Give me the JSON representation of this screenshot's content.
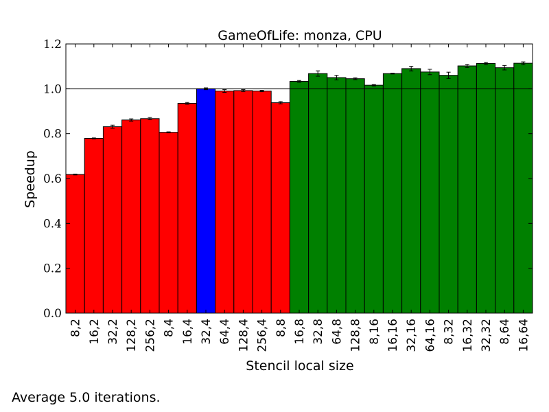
{
  "chart_data": {
    "type": "bar",
    "title": "GameOfLife: monza, CPU",
    "xlabel": "Stencil local size",
    "ylabel": "Speedup",
    "ylim": [
      0.0,
      1.2
    ],
    "yticks": [
      "0.0",
      "0.2",
      "0.4",
      "0.6",
      "0.8",
      "1.0",
      "1.2"
    ],
    "reference_line": 1.0,
    "grid": false,
    "categories": [
      "8,2",
      "16,2",
      "32,2",
      "128,2",
      "256,2",
      "8,4",
      "16,4",
      "32,4",
      "64,4",
      "128,4",
      "256,4",
      "8,8",
      "16,8",
      "32,8",
      "64,8",
      "128,8",
      "8,16",
      "16,16",
      "32,16",
      "64,16",
      "8,32",
      "16,32",
      "32,32",
      "8,64",
      "16,64"
    ],
    "values": [
      0.618,
      0.779,
      0.831,
      0.861,
      0.867,
      0.806,
      0.935,
      1.0,
      0.99,
      0.992,
      0.99,
      0.938,
      1.033,
      1.068,
      1.05,
      1.045,
      1.016,
      1.068,
      1.09,
      1.075,
      1.06,
      1.102,
      1.113,
      1.094,
      1.114
    ],
    "errors": [
      0.002,
      0.002,
      0.007,
      0.005,
      0.005,
      0.002,
      0.004,
      0.004,
      0.006,
      0.004,
      0.003,
      0.005,
      0.004,
      0.012,
      0.01,
      0.004,
      0.003,
      0.002,
      0.01,
      0.012,
      0.014,
      0.007,
      0.005,
      0.01,
      0.006
    ],
    "colors": [
      "#ff0000",
      "#ff0000",
      "#ff0000",
      "#ff0000",
      "#ff0000",
      "#ff0000",
      "#ff0000",
      "#0000ff",
      "#ff0000",
      "#ff0000",
      "#ff0000",
      "#ff0000",
      "#008000",
      "#008000",
      "#008000",
      "#008000",
      "#008000",
      "#008000",
      "#008000",
      "#008000",
      "#008000",
      "#008000",
      "#008000",
      "#008000",
      "#008000"
    ]
  },
  "footnote": "Average 5.0 iterations."
}
